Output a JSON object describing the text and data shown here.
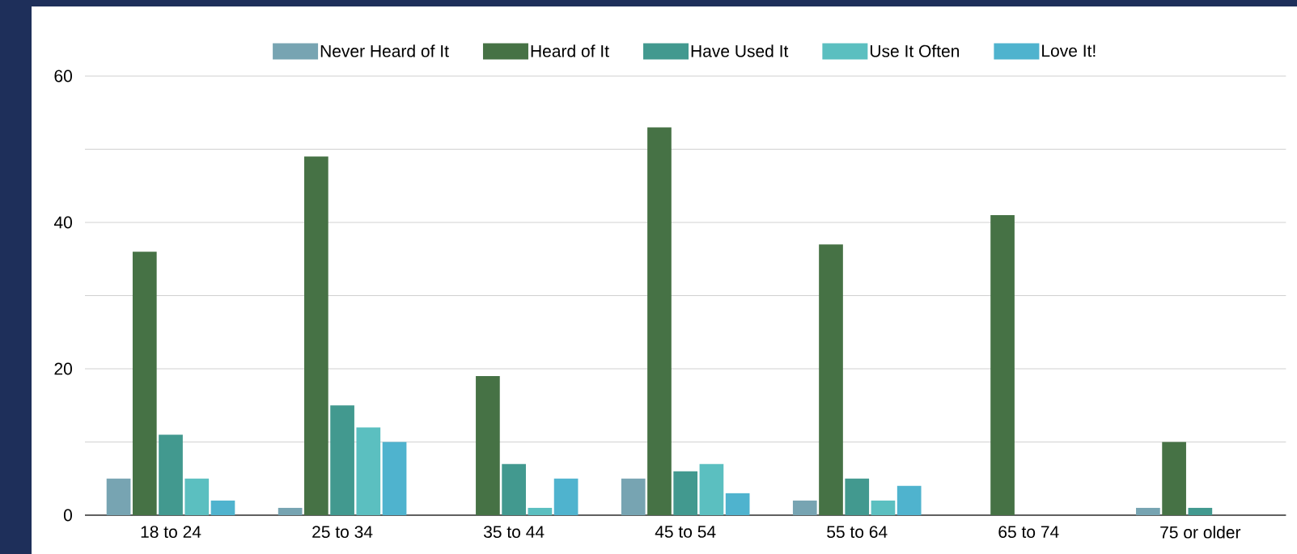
{
  "chart_data": {
    "type": "bar",
    "categories": [
      "18 to 24",
      "25 to 34",
      "35 to 44",
      "45 to 54",
      "55 to 64",
      "65 to 74",
      "75 or older"
    ],
    "series": [
      {
        "name": "Never Heard of It",
        "color": "#77a4b2",
        "values": [
          5,
          1,
          0,
          5,
          2,
          0,
          1
        ]
      },
      {
        "name": "Heard of It",
        "color": "#467245",
        "values": [
          36,
          49,
          19,
          53,
          37,
          41,
          10
        ]
      },
      {
        "name": "Have Used It",
        "color": "#42998f",
        "values": [
          11,
          15,
          7,
          6,
          5,
          0,
          1
        ]
      },
      {
        "name": "Use It Often",
        "color": "#5bbfc0",
        "values": [
          5,
          12,
          1,
          7,
          2,
          0,
          0
        ]
      },
      {
        "name": "Love It!",
        "color": "#4fb3ce",
        "values": [
          2,
          10,
          5,
          3,
          4,
          0,
          0
        ]
      }
    ],
    "ylim": [
      0,
      60
    ],
    "yticks": [
      0,
      {
        "value": 10,
        "label": null
      },
      20,
      {
        "value": 30,
        "label": null
      },
      40,
      {
        "value": 50,
        "label": null
      },
      60
    ],
    "grid": "y",
    "legend": "top"
  }
}
